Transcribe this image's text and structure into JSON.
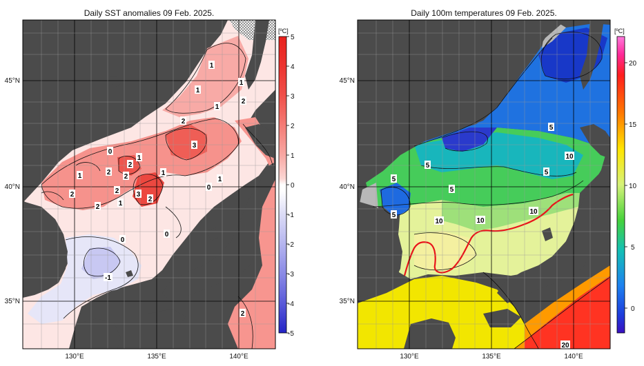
{
  "left_panel": {
    "title": "Daily SST anomalies 09 Feb. 2025.",
    "unit": "[ºC]",
    "colorbar_ticks": [
      "5",
      "4",
      "3",
      "2",
      "1",
      "0",
      "-1",
      "-2",
      "-3",
      "-4",
      "-5"
    ],
    "colorbar_colors": [
      "#e8211c",
      "#f0504a",
      "#f47c76",
      "#f8a7a3",
      "#fbd0cd",
      "#ffffff",
      "#dcdcf6",
      "#b5b5ef",
      "#8a8ae6",
      "#5a5ad9",
      "#2424c6"
    ],
    "contour_labels": [
      "1",
      "1",
      "1",
      "2",
      "1",
      "2",
      "3",
      "0",
      "1",
      "2",
      "2",
      "1",
      "1",
      "2",
      "3",
      "2",
      "1",
      "0",
      "1",
      "2",
      "2",
      "2",
      "0",
      "0",
      "-1",
      "2"
    ],
    "land_color": "#4b4b4b"
  },
  "right_panel": {
    "title": "Daily 100m temperatures 09 Feb. 2025.",
    "unit": "[ºC]",
    "colorbar_ticks": [
      "20",
      "15",
      "10",
      "5",
      "0"
    ],
    "colorbar_colors": [
      "#ff66cc",
      "#ff2a1e",
      "#ff8c00",
      "#ffe500",
      "#d6f27a",
      "#73e03c",
      "#1ec36a",
      "#14c0b4",
      "#1e5fe6",
      "#2a1ed2"
    ],
    "contour_labels": [
      "5",
      "5",
      "5",
      "5",
      "5",
      "5",
      "10",
      "10",
      "10",
      "10",
      "20"
    ],
    "land_color": "#4b4b4b",
    "front_color": "#e8141a"
  },
  "axes": {
    "x_ticks": [
      "130°E",
      "135°E",
      "140°E"
    ],
    "y_ticks": [
      "45°N",
      "40°N",
      "35°N"
    ]
  }
}
